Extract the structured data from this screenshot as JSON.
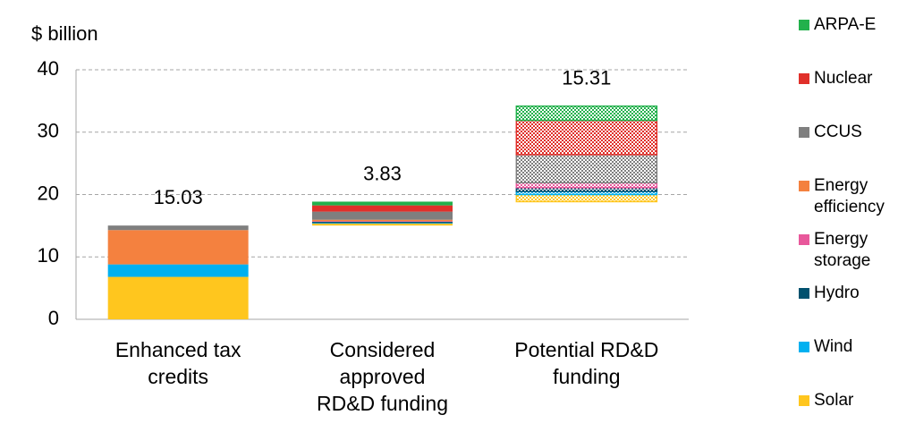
{
  "chart_data": {
    "type": "bar",
    "stacked": true,
    "cumulative": true,
    "y_label": "$ billion",
    "categories": [
      "Enhanced tax\ncredits",
      "Considered\napproved\nRD&D funding",
      "Potential RD&D\nfunding"
    ],
    "series": [
      {
        "name": "Solar",
        "color": "#ffc61e",
        "values": [
          6.8,
          0.3,
          1.14
        ]
      },
      {
        "name": "Wind",
        "color": "#00b0f0",
        "values": [
          2.0,
          0.1,
          0.5
        ]
      },
      {
        "name": "Hydro",
        "color": "#00516e",
        "values": [
          0,
          0.2,
          0.6
        ]
      },
      {
        "name": "Energy storage",
        "color": "#e8589b",
        "values": [
          0,
          0.1,
          0.8
        ]
      },
      {
        "name": "Energy efficiency",
        "color": "#f4813f",
        "values": [
          5.5,
          0.23,
          0
        ]
      },
      {
        "name": "CCUS",
        "color": "#7f7f7f",
        "values": [
          0.73,
          1.3,
          4.5
        ]
      },
      {
        "name": "Nuclear",
        "color": "#e0302a",
        "values": [
          0,
          1.0,
          5.5
        ]
      },
      {
        "name": "ARPA-E",
        "color": "#22b14c",
        "values": [
          0,
          0.6,
          2.27
        ]
      }
    ],
    "totals": [
      15.03,
      3.83,
      15.31
    ],
    "hatched": [
      false,
      false,
      true
    ],
    "ylim": [
      0,
      40
    ],
    "yticks": [
      0,
      10,
      20,
      30,
      40
    ],
    "grid": true,
    "legend": "right"
  }
}
